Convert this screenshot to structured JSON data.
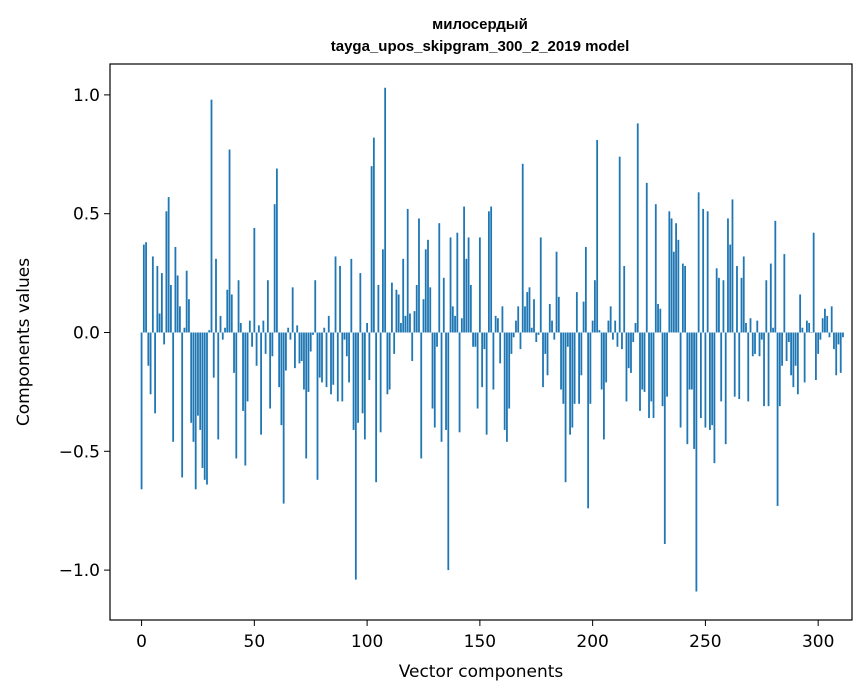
{
  "chart_data": {
    "type": "bar",
    "title_line1": "милосердый",
    "title_line2": "tayga_upos_skipgram_300_2_2019 model",
    "xlabel": "Vector components",
    "ylabel": "Components values",
    "xlim": [
      -14,
      315
    ],
    "ylim": [
      -1.21,
      1.13
    ],
    "xticks": [
      0,
      50,
      100,
      150,
      200,
      250,
      300
    ],
    "xtick_labels": [
      "0",
      "50",
      "100",
      "150",
      "200",
      "250",
      "300"
    ],
    "yticks": [
      -1.0,
      -0.5,
      0.0,
      0.5,
      1.0
    ],
    "ytick_labels": [
      "−1.0",
      "−0.5",
      "0.0",
      "0.5",
      "1.0"
    ],
    "bar_color": "#1f77b4",
    "values": [
      -0.66,
      0.37,
      0.38,
      -0.14,
      -0.26,
      0.32,
      -0.34,
      0.28,
      0.08,
      0.25,
      -0.05,
      0.51,
      0.57,
      0.2,
      -0.46,
      0.36,
      0.24,
      0.11,
      -0.61,
      0.02,
      0.26,
      0.14,
      -0.38,
      -0.46,
      -0.66,
      -0.35,
      -0.41,
      -0.57,
      -0.62,
      -0.64,
      0.01,
      0.98,
      -0.19,
      0.31,
      -0.45,
      0.07,
      -0.03,
      0.02,
      0.18,
      0.77,
      0.16,
      -0.17,
      -0.53,
      0.22,
      0.04,
      -0.33,
      -0.56,
      -0.29,
      0.05,
      -0.06,
      0.44,
      -0.14,
      0.03,
      -0.43,
      0.05,
      -0.09,
      0.22,
      -0.32,
      -0.1,
      0.54,
      0.69,
      -0.23,
      -0.39,
      -0.72,
      -0.16,
      0.02,
      -0.03,
      0.19,
      -0.15,
      0.03,
      -0.13,
      -0.12,
      -0.24,
      -0.53,
      -0.25,
      -0.08,
      -0.01,
      0.22,
      -0.62,
      -0.19,
      -0.21,
      0.02,
      -0.23,
      0.07,
      -0.26,
      -0.22,
      0.32,
      -0.29,
      0.28,
      -0.29,
      -0.03,
      -0.1,
      -0.21,
      0.31,
      -0.41,
      -1.04,
      -0.38,
      0.25,
      -0.34,
      -0.45,
      0.04,
      -0.2,
      0.7,
      0.82,
      -0.63,
      0.2,
      -0.42,
      0.35,
      1.03,
      -0.26,
      -0.24,
      0.21,
      -0.09,
      0.18,
      0.16,
      0.04,
      0.31,
      0.07,
      0.52,
      0.08,
      -0.12,
      0.09,
      0.2,
      0.48,
      -0.53,
      0.14,
      0.35,
      0.39,
      0.19,
      -0.32,
      -0.4,
      -0.06,
      0.46,
      -0.46,
      0.23,
      -0.41,
      -1.0,
      0.4,
      0.11,
      0.07,
      0.42,
      -0.42,
      0.06,
      0.53,
      0.31,
      0.4,
      0.2,
      -0.06,
      -0.06,
      -0.32,
      0.4,
      -0.23,
      -0.07,
      -0.43,
      0.51,
      0.53,
      -0.24,
      0.07,
      0.06,
      -0.13,
      0.11,
      -0.41,
      -0.46,
      -0.32,
      -0.09,
      -0.02,
      0.05,
      0.11,
      -0.07,
      0.71,
      0.11,
      0.17,
      0.19,
      0.02,
      0.14,
      -0.04,
      -0.01,
      0.4,
      -0.23,
      -0.09,
      -0.18,
      0.12,
      0.05,
      -0.03,
      0.34,
      0.15,
      -0.24,
      -0.3,
      -0.63,
      -0.06,
      -0.43,
      -0.4,
      -0.3,
      0.17,
      -0.3,
      -0.18,
      0.13,
      0.36,
      -0.74,
      -0.3,
      0.05,
      0.22,
      0.81,
      0.01,
      -0.24,
      -0.45,
      -0.21,
      0.05,
      0.11,
      -0.03,
      0.05,
      -0.06,
      0.74,
      -0.07,
      0.28,
      -0.29,
      -0.15,
      -0.17,
      -0.04,
      0.04,
      0.88,
      -0.33,
      -0.24,
      -0.25,
      0.63,
      -0.36,
      -0.29,
      -0.36,
      0.54,
      0.12,
      0.1,
      -0.31,
      -0.89,
      -0.27,
      0.51,
      0.48,
      0.34,
      0.46,
      0.39,
      -0.4,
      0.29,
      0.28,
      -0.47,
      -0.24,
      -0.24,
      -0.49,
      -1.09,
      0.59,
      -0.36,
      0.52,
      -0.4,
      0.51,
      -0.41,
      -0.39,
      -0.55,
      0.27,
      0.23,
      -0.29,
      0.22,
      -0.47,
      0.48,
      0.37,
      0.56,
      -0.27,
      0.28,
      -0.28,
      0.23,
      0.32,
      0.04,
      -0.29,
      0.06,
      -0.1,
      -0.09,
      0.05,
      -0.1,
      -0.03,
      -0.31,
      0.22,
      -0.31,
      0.29,
      0.02,
      0.47,
      -0.73,
      -0.31,
      -0.14,
      0.33,
      -0.12,
      -0.04,
      -0.18,
      -0.23,
      -0.14,
      -0.26,
      0.16,
      0.02,
      -0.21,
      0.05,
      0.04,
      0.0,
      0.42,
      -0.2,
      -0.09,
      -0.03,
      0.06,
      0.1,
      0.07,
      -0.02,
      0.11,
      -0.07,
      -0.18,
      -0.05,
      -0.17,
      -0.02
    ]
  }
}
